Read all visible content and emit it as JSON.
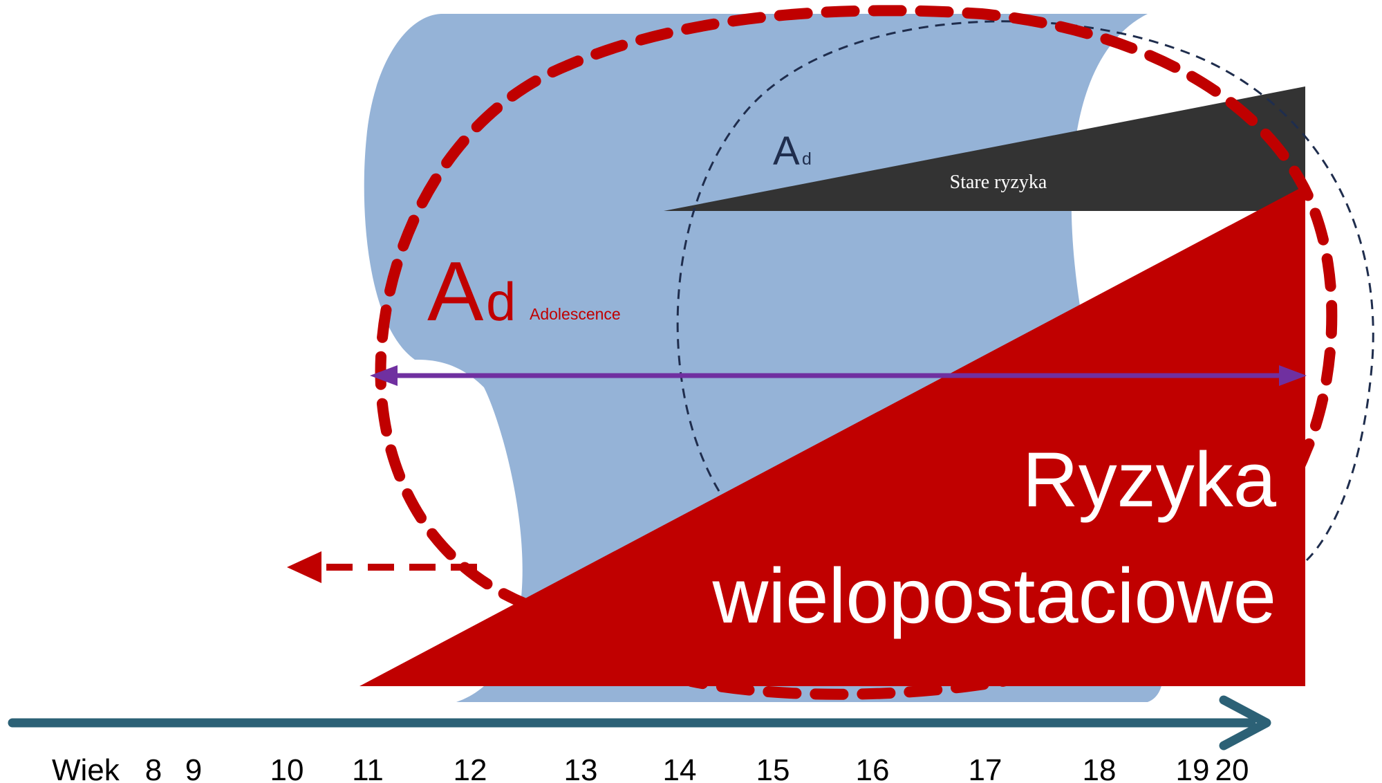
{
  "colors": {
    "cylinder": "#95B3D7",
    "red": "#C00000",
    "dark": "#333333",
    "navy": "#1F2D4D",
    "purple": "#7030A0",
    "axis": "#2C6176",
    "white": "#FFFFFF"
  },
  "labels": {
    "ad_big_letter": "A",
    "ad_big_sub": "d",
    "ad_big_caption": "Adolescence",
    "ad_small_letter": "A",
    "ad_small_sub": "d",
    "old_risks": "Stare ryzyka",
    "multi_risks_line1": "Ryzyka",
    "multi_risks_line2": "wielopostaciowe"
  },
  "axis": {
    "title": "Wiek",
    "ticks": [
      "8",
      "9",
      "10",
      "11",
      "12",
      "13",
      "14",
      "15",
      "16",
      "17",
      "18",
      "19",
      "20"
    ]
  }
}
